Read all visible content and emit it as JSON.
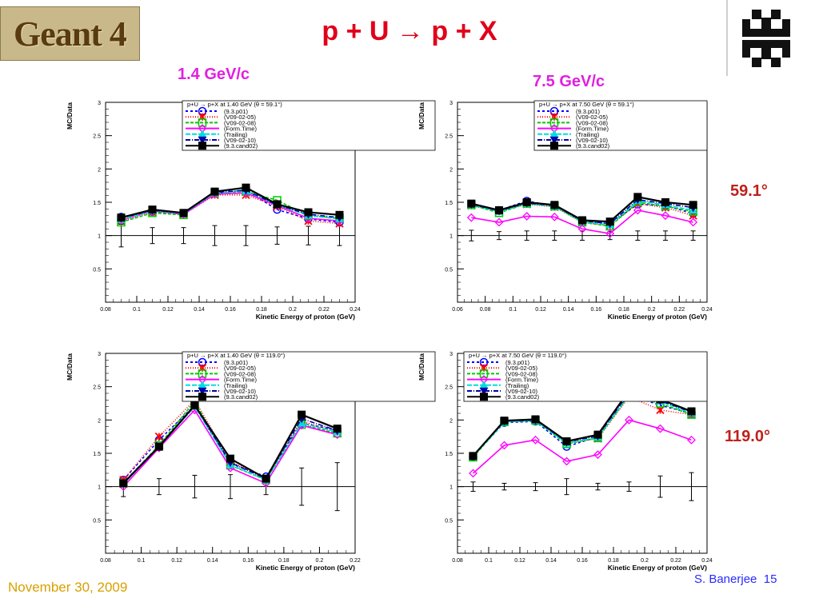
{
  "header": {
    "logo_text": "Geant 4",
    "title": "p + U → p + X",
    "momentum_left": "1.4 GeV/c",
    "momentum_right": "7.5 GeV/c",
    "angle_top": "59.1°",
    "angle_bottom": "119.0°"
  },
  "footer": {
    "date": "November 30, 2009",
    "author": "S. Banerjee",
    "page": "15"
  },
  "colors": {
    "title": "#e0001a",
    "momentum": "#e020e0",
    "angle": "#c0201a",
    "date": "#d8a000",
    "author": "#2a2aff"
  },
  "legend_items": [
    {
      "label": "(9.3.p01)",
      "color": "#0000ff",
      "dash": "3,3",
      "marker": "circle"
    },
    {
      "label": "(V09-02-05)",
      "color": "#ff0000",
      "dash": "1,2",
      "marker": "star"
    },
    {
      "label": "(V09-02-08)",
      "color": "#00cc00",
      "dash": "4,2",
      "marker": "square-open"
    },
    {
      "label": "(Form.Time)",
      "color": "#ff00ff",
      "dash": "",
      "marker": "diamond"
    },
    {
      "label": "(Trailing)",
      "color": "#00dddd",
      "dash": "6,2",
      "marker": "triangle"
    },
    {
      "label": "(V09-02-10)",
      "color": "#0000aa",
      "dash": "6,2,1,2",
      "marker": "triangle-down"
    },
    {
      "label": "(9.3.cand02)",
      "color": "#000000",
      "dash": "",
      "marker": "square"
    }
  ],
  "chart_data": [
    {
      "type": "line",
      "legend_title": "p+U → p+X at 1.40 GeV (θ = 59.1°)",
      "xlabel": "Kinetic Energy of proton (GeV)",
      "ylabel": "MC/Data",
      "xlim": [
        0.08,
        0.24
      ],
      "ylim": [
        0,
        3
      ],
      "xticks": [
        "0.08",
        "0.1",
        "0.12",
        "0.14",
        "0.16",
        "0.18",
        "0.2",
        "0.22",
        "0.24"
      ],
      "yticks": [
        "0.5",
        "1",
        "1.5",
        "2",
        "2.5",
        "3"
      ],
      "reference_line": 1,
      "x": [
        0.09,
        0.11,
        0.13,
        0.15,
        0.17,
        0.19,
        0.21,
        0.23
      ],
      "error_bars": [
        0.17,
        0.12,
        0.12,
        0.15,
        0.15,
        0.13,
        0.14,
        0.15
      ],
      "series": [
        {
          "name": "(9.3.p01)",
          "values": [
            1.28,
            1.36,
            1.33,
            1.63,
            1.68,
            1.39,
            1.25,
            1.2
          ]
        },
        {
          "name": "(V09-02-05)",
          "values": [
            1.22,
            1.35,
            1.32,
            1.61,
            1.61,
            1.44,
            1.22,
            1.18
          ]
        },
        {
          "name": "(V09-02-08)",
          "values": [
            1.2,
            1.34,
            1.31,
            1.64,
            1.66,
            1.53,
            1.3,
            1.26
          ]
        },
        {
          "name": "(Form.Time)",
          "values": [
            1.23,
            1.37,
            1.32,
            1.62,
            1.64,
            1.45,
            1.26,
            1.22
          ]
        },
        {
          "name": "(Trailing)",
          "values": [
            1.24,
            1.37,
            1.33,
            1.64,
            1.67,
            1.46,
            1.3,
            1.25
          ]
        },
        {
          "name": "(V09-02-10)",
          "values": [
            1.26,
            1.38,
            1.34,
            1.65,
            1.68,
            1.46,
            1.32,
            1.27
          ]
        },
        {
          "name": "(9.3.cand02)",
          "values": [
            1.27,
            1.39,
            1.34,
            1.66,
            1.72,
            1.47,
            1.35,
            1.31
          ]
        }
      ]
    },
    {
      "type": "line",
      "legend_title": "p+U → p+X at 7.50 GeV (θ = 59.1°)",
      "xlabel": "Kinetic Energy of proton (GeV)",
      "ylabel": "MC/Data",
      "xlim": [
        0.06,
        0.24
      ],
      "ylim": [
        0,
        3
      ],
      "xticks": [
        "0.06",
        "0.08",
        "0.1",
        "0.12",
        "0.14",
        "0.16",
        "0.18",
        "0.2",
        "0.22",
        "0.24"
      ],
      "yticks": [
        "0.5",
        "1",
        "1.5",
        "2",
        "2.5",
        "3"
      ],
      "reference_line": 1,
      "x": [
        0.07,
        0.09,
        0.11,
        0.13,
        0.15,
        0.17,
        0.19,
        0.21,
        0.23
      ],
      "error_bars": [
        0.08,
        0.06,
        0.07,
        0.07,
        0.07,
        0.06,
        0.07,
        0.07,
        0.07
      ],
      "series": [
        {
          "name": "(9.3.p01)",
          "values": [
            1.47,
            1.38,
            1.52,
            1.44,
            1.22,
            1.18,
            1.47,
            1.45,
            1.33
          ]
        },
        {
          "name": "(V09-02-05)",
          "values": [
            1.45,
            1.36,
            1.47,
            1.43,
            1.2,
            1.15,
            1.48,
            1.42,
            1.3
          ]
        },
        {
          "name": "(V09-02-08)",
          "values": [
            1.46,
            1.34,
            1.48,
            1.44,
            1.2,
            1.14,
            1.5,
            1.44,
            1.36
          ]
        },
        {
          "name": "(Form.Time)",
          "values": [
            1.27,
            1.2,
            1.29,
            1.28,
            1.1,
            1.03,
            1.38,
            1.3,
            1.2
          ]
        },
        {
          "name": "(Trailing)",
          "values": [
            1.46,
            1.36,
            1.48,
            1.44,
            1.21,
            1.16,
            1.52,
            1.46,
            1.38
          ]
        },
        {
          "name": "(V09-02-10)",
          "values": [
            1.47,
            1.37,
            1.49,
            1.45,
            1.22,
            1.18,
            1.54,
            1.48,
            1.42
          ]
        },
        {
          "name": "(9.3.cand02)",
          "values": [
            1.48,
            1.38,
            1.5,
            1.46,
            1.23,
            1.21,
            1.58,
            1.5,
            1.46
          ]
        }
      ]
    },
    {
      "type": "line",
      "legend_title": "p+U → p+X at 1.40 GeV (θ = 119.0°)",
      "xlabel": "Kinetic Energy of proton (GeV)",
      "ylabel": "MC/Data",
      "xlim": [
        0.08,
        0.22
      ],
      "ylim": [
        0,
        3
      ],
      "xticks": [
        "0.08",
        "0.1",
        "0.12",
        "0.14",
        "0.16",
        "0.18",
        "0.2",
        "0.22"
      ],
      "yticks": [
        "0.5",
        "1",
        "1.5",
        "2",
        "2.5",
        "3"
      ],
      "reference_line": 1,
      "x": [
        0.09,
        0.11,
        0.13,
        0.15,
        0.17,
        0.19,
        0.21
      ],
      "error_bars": [
        0.15,
        0.12,
        0.17,
        0.18,
        0.12,
        0.28,
        0.36
      ],
      "series": [
        {
          "name": "(9.3.p01)",
          "values": [
            1.1,
            1.7,
            2.22,
            1.35,
            1.15,
            1.95,
            1.85
          ]
        },
        {
          "name": "(V09-02-05)",
          "values": [
            1.1,
            1.75,
            2.3,
            1.38,
            1.12,
            1.98,
            1.82
          ]
        },
        {
          "name": "(V09-02-08)",
          "values": [
            1.05,
            1.62,
            2.28,
            1.32,
            1.1,
            1.93,
            1.8
          ]
        },
        {
          "name": "(Form.Time)",
          "values": [
            1.0,
            1.58,
            2.15,
            1.28,
            1.05,
            1.92,
            1.78
          ]
        },
        {
          "name": "(Trailing)",
          "values": [
            1.04,
            1.6,
            2.2,
            1.33,
            1.1,
            1.95,
            1.82
          ]
        },
        {
          "name": "(V09-02-10)",
          "values": [
            1.06,
            1.61,
            2.22,
            1.36,
            1.12,
            2.02,
            1.84
          ]
        },
        {
          "name": "(9.3.cand02)",
          "values": [
            1.05,
            1.6,
            2.22,
            1.42,
            1.12,
            2.08,
            1.87
          ]
        }
      ]
    },
    {
      "type": "line",
      "legend_title": "p+U → p+X at 7.50 GeV (θ = 119.0°)",
      "xlabel": "Kinetic Energy of proton (GeV)",
      "ylabel": "MC/Data",
      "xlim": [
        0.08,
        0.24
      ],
      "ylim": [
        0,
        3
      ],
      "xticks": [
        "0.08",
        "0.1",
        "0.12",
        "0.14",
        "0.16",
        "0.18",
        "0.2",
        "0.22",
        "0.24"
      ],
      "yticks": [
        "0.5",
        "1",
        "1.5",
        "2",
        "2.5",
        "3"
      ],
      "reference_line": 1,
      "x": [
        0.09,
        0.11,
        0.13,
        0.15,
        0.17,
        0.19,
        0.21,
        0.23
      ],
      "error_bars": [
        0.07,
        0.05,
        0.06,
        0.12,
        0.05,
        0.07,
        0.16,
        0.21
      ],
      "series": [
        {
          "name": "(9.3.p01)",
          "values": [
            1.45,
            1.96,
            1.98,
            1.6,
            1.75,
            2.38,
            2.22,
            2.1
          ]
        },
        {
          "name": "(V09-02-05)",
          "values": [
            1.46,
            1.98,
            2.0,
            1.66,
            1.72,
            2.35,
            2.15,
            2.08
          ]
        },
        {
          "name": "(V09-02-08)",
          "values": [
            1.44,
            1.97,
            1.99,
            1.64,
            1.73,
            2.37,
            2.25,
            2.08
          ]
        },
        {
          "name": "(Form.Time)",
          "values": [
            1.2,
            1.62,
            1.7,
            1.38,
            1.48,
            2.0,
            1.87,
            1.7
          ]
        },
        {
          "name": "(Trailing)",
          "values": [
            1.45,
            1.97,
            1.99,
            1.65,
            1.74,
            2.38,
            2.28,
            2.1
          ]
        },
        {
          "name": "(V09-02-10)",
          "values": [
            1.46,
            1.98,
            2.0,
            1.67,
            1.76,
            2.41,
            2.29,
            2.12
          ]
        },
        {
          "name": "(9.3.cand02)",
          "values": [
            1.46,
            1.99,
            2.01,
            1.68,
            1.78,
            2.44,
            2.31,
            2.13
          ]
        }
      ]
    }
  ]
}
